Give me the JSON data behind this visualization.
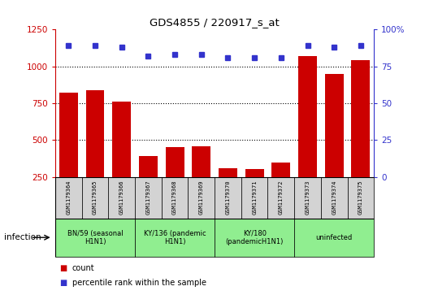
{
  "title": "GDS4855 / 220917_s_at",
  "samples": [
    "GSM1179364",
    "GSM1179365",
    "GSM1179366",
    "GSM1179367",
    "GSM1179368",
    "GSM1179369",
    "GSM1179370",
    "GSM1179371",
    "GSM1179372",
    "GSM1179373",
    "GSM1179374",
    "GSM1179375"
  ],
  "counts": [
    820,
    840,
    760,
    390,
    450,
    460,
    310,
    305,
    350,
    1070,
    950,
    1040
  ],
  "percentiles": [
    89,
    89,
    88,
    82,
    83,
    83,
    81,
    81,
    81,
    89,
    88,
    89
  ],
  "groups": [
    {
      "label": "BN/59 (seasonal\nH1N1)",
      "start": 0,
      "end": 3,
      "color": "#90EE90"
    },
    {
      "label": "KY/136 (pandemic\nH1N1)",
      "start": 3,
      "end": 6,
      "color": "#90EE90"
    },
    {
      "label": "KY/180\n(pandemicH1N1)",
      "start": 6,
      "end": 9,
      "color": "#90EE90"
    },
    {
      "label": "uninfected",
      "start": 9,
      "end": 12,
      "color": "#90EE90"
    }
  ],
  "ylim_left": [
    250,
    1250
  ],
  "ylim_right": [
    0,
    100
  ],
  "yticks_left": [
    250,
    500,
    750,
    1000,
    1250
  ],
  "yticks_right": [
    0,
    25,
    50,
    75,
    100
  ],
  "bar_color": "#cc0000",
  "dot_color": "#3333cc",
  "sample_bg_color": "#d3d3d3",
  "infection_label": "infection",
  "legend_count": "count",
  "legend_percentile": "percentile rank within the sample",
  "figsize": [
    5.23,
    3.63
  ],
  "dpi": 100
}
